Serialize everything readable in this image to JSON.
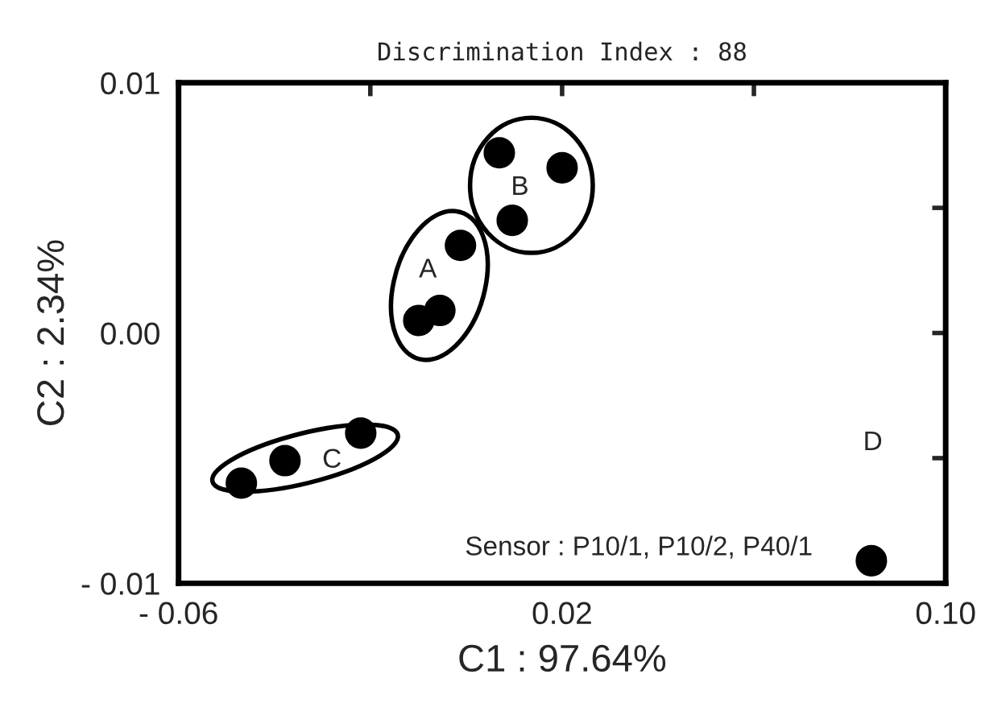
{
  "chart_data": {
    "type": "scatter",
    "title": "Discrimination Index : 88",
    "xlabel": "C1 : 97.64%",
    "ylabel": "C2 : 2.34%",
    "x": [
      -0.0469,
      -0.0378,
      -0.022,
      -0.0099,
      -0.0055,
      -0.0012,
      0.0069,
      0.0096,
      0.02,
      0.0845
    ],
    "series": [
      {
        "color": "#000000",
        "values": [
          -0.006,
          -0.0051,
          -0.004,
          0.0005,
          0.0009,
          0.0035,
          0.0072,
          0.0045,
          0.0066,
          -0.0091
        ]
      }
    ],
    "xlim": [
      -0.06,
      0.1
    ],
    "xticks": [
      {
        "value": -0.06,
        "label": "- 0.06"
      },
      {
        "value": -0.02,
        "label": null
      },
      0.02,
      {
        "value": 0.06,
        "label": null
      },
      {
        "value": 0.1,
        "label": "0.10"
      }
    ],
    "ylim": [
      -0.01,
      0.01
    ],
    "yticks": [
      {
        "value": -0.01,
        "label": "- 0.01"
      },
      {
        "value": -0.005,
        "label": null
      },
      {
        "value": 0.0,
        "label": "0.00"
      },
      {
        "value": 0.005,
        "label": null
      },
      0.01
    ],
    "marker": "circle",
    "grid": false,
    "legend": false,
    "annotations": [
      "A",
      "B",
      "C",
      "D",
      "Sensor : P10/1, P10/2, P40/1"
    ]
  }
}
